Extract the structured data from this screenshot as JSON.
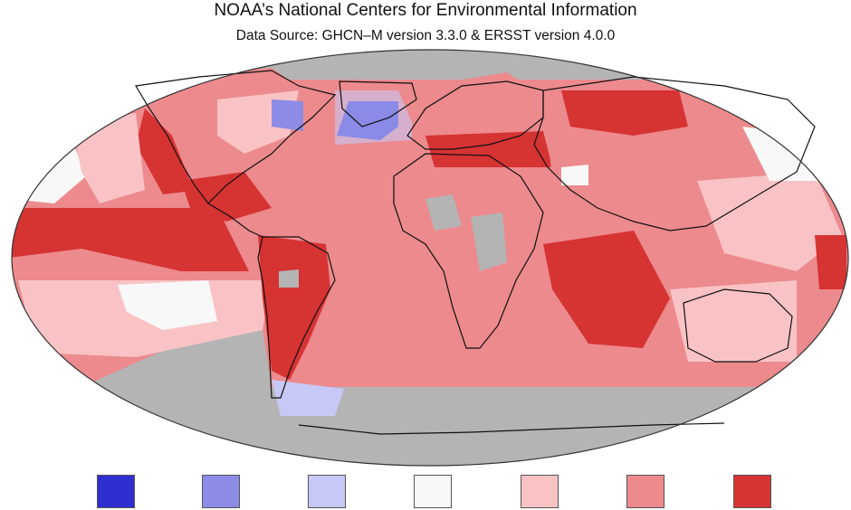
{
  "title": "NOAA’s National Centers for Environmental Information",
  "subtitle": "Data Source: GHCN–M version 3.3.0 & ERSST version 4.0.0",
  "palette": {
    "much_cooler": "#2f2fcf",
    "cooler": "#8c8ce6",
    "slightly_cooler": "#c8c8f6",
    "near_average": "#f8f8f8",
    "slightly_warmer": "#f9c3c5",
    "warmer": "#ec8a8d",
    "much_warmer": "#d63333",
    "no_data": "#b4b4b4",
    "ocean_background": "#f2a1a4"
  },
  "legend": {
    "swatches": [
      "much_cooler",
      "cooler",
      "slightly_cooler",
      "near_average",
      "slightly_warmer",
      "warmer",
      "much_warmer"
    ]
  }
}
